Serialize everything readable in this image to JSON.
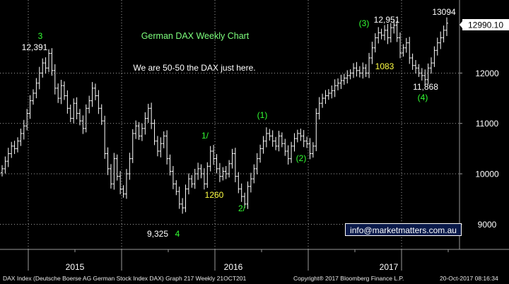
{
  "chart_data": {
    "type": "ohlc",
    "title": "German DAX Weekly Chart",
    "subtitle": "We are 50-50 the DAX just here.",
    "xlabel": "",
    "ylabel": "",
    "ylim": [
      8500,
      13450
    ],
    "yticks": [
      9000,
      10000,
      11000,
      12000
    ],
    "x_tick_labels": [
      "2015",
      "2016",
      "2017"
    ],
    "last_price_label": "12990.10",
    "last_price": 12990.1,
    "grid": true,
    "series_closes": [
      10100,
      10250,
      10400,
      10550,
      10500,
      10650,
      10800,
      10950,
      11200,
      11450,
      11600,
      11800,
      12000,
      12200,
      12100,
      12391,
      12050,
      11700,
      11500,
      11750,
      11550,
      11300,
      11100,
      11400,
      11200,
      11050,
      10900,
      11300,
      11450,
      11700,
      11550,
      11300,
      11050,
      10400,
      10100,
      9800,
      10300,
      9950,
      9700,
      9600,
      10000,
      10300,
      10800,
      10950,
      10750,
      10900,
      11100,
      11300,
      11000,
      10650,
      10450,
      10600,
      10750,
      10300,
      10050,
      9800,
      9650,
      9400,
      9325,
      9700,
      9900,
      9800,
      10000,
      10100,
      10000,
      9800,
      10150,
      10450,
      10300,
      10100,
      9950,
      10050,
      10000,
      10200,
      10400,
      9950,
      9700,
      9550,
      9400,
      9750,
      9900,
      10100,
      10300,
      10500,
      10650,
      10800,
      10750,
      10650,
      10550,
      10750,
      10600,
      10450,
      10300,
      10550,
      10700,
      10800,
      10750,
      10650,
      10600,
      10400,
      10550,
      11200,
      11400,
      11500,
      11550,
      11600,
      11650,
      11750,
      11800,
      11850,
      11900,
      11950,
      12000,
      12100,
      12050,
      12000,
      12100,
      12000,
      12300,
      12500,
      12700,
      12800,
      12750,
      12850,
      12700,
      12900,
      12951,
      12700,
      12400,
      12500,
      12600,
      12300,
      12150,
      12100,
      12000,
      11950,
      11868,
      12100,
      12200,
      12450,
      12600,
      12700,
      12850,
      12990
    ],
    "wave_labels": [
      {
        "text": "3"
      },
      {
        "text": "4"
      },
      {
        "text": "1/"
      },
      {
        "text": "2/"
      },
      {
        "text": "(1)"
      },
      {
        "text": "(2)"
      },
      {
        "text": "(3)"
      },
      {
        "text": "(4)"
      }
    ],
    "price_annotations": [
      {
        "text": "12,391"
      },
      {
        "text": "9,325"
      },
      {
        "text": "1260"
      },
      {
        "text": "12,951"
      },
      {
        "text": "13094"
      },
      {
        "text": "1083"
      },
      {
        "text": "11,868"
      }
    ]
  },
  "email": "info@marketmatters.com.au",
  "footer": {
    "description": "DAX Index (Deutsche Boerse AG German Stock Index DAX) Graph 217  Weekly 21OCT201",
    "copyright": "Copyright® 2017 Bloomberg Finance L.P.",
    "timestamp": "20-Oct-2017 08:16:34"
  }
}
